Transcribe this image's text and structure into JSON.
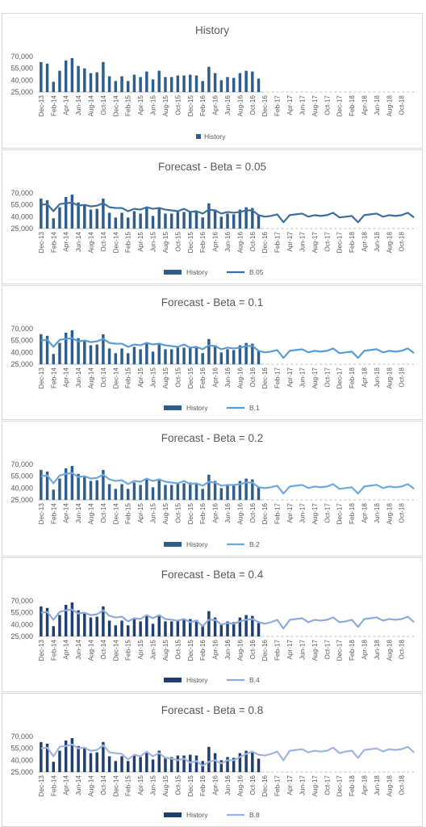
{
  "chart_data": [
    {
      "type": "bar",
      "title": "History",
      "legend_position": "bottom",
      "grid": false,
      "ylim": [
        25000,
        70000
      ],
      "yticks": [
        "25,000",
        "40,000",
        "55,000",
        "70,000"
      ],
      "xtick_labels": [
        "Dec-13",
        "Feb-14",
        "Apr-14",
        "Jun-14",
        "Aug-14",
        "Oct-14",
        "Dec-14",
        "Feb-15",
        "Apr-15",
        "Jun-15",
        "Aug-15",
        "Oct-15",
        "Dec-15",
        "Feb-16",
        "Apr-16",
        "Jun-16",
        "Aug-16",
        "Oct-16",
        "Dec-16",
        "Feb-17",
        "Apr-17",
        "Jun-17",
        "Aug-17",
        "Oct-17",
        "Dec-17",
        "Feb-18",
        "Apr-18",
        "Jun-18",
        "Aug-18",
        "Oct-18"
      ],
      "bar_color": "#2e5e8e",
      "series": [
        {
          "name": "History",
          "kind": "bar",
          "color": "#2e5e8e",
          "values": [
            63000,
            61000,
            38000,
            52000,
            65000,
            68000,
            58000,
            55000,
            49000,
            50000,
            63000,
            45000,
            39000,
            45000,
            39000,
            47000,
            44000,
            51000,
            41000,
            52000,
            44000,
            44000,
            46000,
            46000,
            47000,
            46000,
            39000,
            57000,
            49000,
            40000,
            44000,
            43000,
            49000,
            52000,
            51000,
            42000
          ]
        }
      ]
    },
    {
      "type": "bar",
      "title": "Forecast - Beta = 0.05",
      "legend_position": "bottom",
      "grid": false,
      "ylim": [
        25000,
        70000
      ],
      "yticks": [
        "25,000",
        "40,000",
        "55,000",
        "70,000"
      ],
      "xtick_labels": [
        "Dec-13",
        "Feb-14",
        "Apr-14",
        "Jun-14",
        "Aug-14",
        "Oct-14",
        "Dec-14",
        "Feb-15",
        "Apr-15",
        "Jun-15",
        "Aug-15",
        "Oct-15",
        "Dec-15",
        "Feb-16",
        "Apr-16",
        "Jun-16",
        "Aug-16",
        "Oct-16",
        "Dec-16",
        "Feb-17",
        "Apr-17",
        "Jun-17",
        "Aug-17",
        "Oct-17",
        "Dec-17",
        "Feb-18",
        "Apr-18",
        "Jun-18",
        "Aug-18",
        "Oct-18"
      ],
      "series": [
        {
          "name": "History",
          "kind": "bar",
          "color": "#2e5e8e",
          "values": [
            63000,
            61000,
            38000,
            52000,
            65000,
            68000,
            58000,
            55000,
            49000,
            50000,
            63000,
            45000,
            39000,
            45000,
            39000,
            47000,
            44000,
            51000,
            41000,
            52000,
            44000,
            44000,
            46000,
            46000,
            47000,
            46000,
            39000,
            57000,
            49000,
            40000,
            44000,
            43000,
            49000,
            52000,
            51000,
            42000
          ]
        },
        {
          "name": "B.05",
          "kind": "line",
          "color": "#3d6e9e",
          "values": [
            55000,
            56000,
            47000,
            56000,
            57000,
            58000,
            54000,
            55000,
            53000,
            54000,
            57000,
            52000,
            51000,
            51000,
            47000,
            50000,
            49000,
            52000,
            50000,
            51000,
            49000,
            48000,
            47000,
            50000,
            46000,
            47000,
            44000,
            49000,
            48000,
            44000,
            46000,
            45000,
            46000,
            48000,
            48000,
            42000,
            40000,
            41000,
            43000,
            33000,
            42000,
            43000,
            44000,
            40000,
            42000,
            41000,
            42000,
            45000,
            39000,
            40000,
            41000,
            33000,
            42000,
            43000,
            44000,
            40000,
            42000,
            41000,
            42000,
            45000,
            39000
          ]
        }
      ]
    },
    {
      "type": "bar",
      "title": "Forecast - Beta = 0.1",
      "legend_position": "bottom",
      "grid": false,
      "ylim": [
        25000,
        70000
      ],
      "yticks": [
        "25,000",
        "40,000",
        "55,000",
        "70,000"
      ],
      "xtick_labels": [
        "Dec-13",
        "Feb-14",
        "Apr-14",
        "Jun-14",
        "Aug-14",
        "Oct-14",
        "Dec-14",
        "Feb-15",
        "Apr-15",
        "Jun-15",
        "Aug-15",
        "Oct-15",
        "Dec-15",
        "Feb-16",
        "Apr-16",
        "Jun-16",
        "Aug-16",
        "Oct-16",
        "Dec-16",
        "Feb-17",
        "Apr-17",
        "Jun-17",
        "Aug-17",
        "Oct-17",
        "Dec-17",
        "Feb-18",
        "Apr-18",
        "Jun-18",
        "Aug-18",
        "Oct-18"
      ],
      "series": [
        {
          "name": "History",
          "kind": "bar",
          "color": "#2e5e8e",
          "values": [
            63000,
            61000,
            38000,
            52000,
            65000,
            68000,
            58000,
            55000,
            49000,
            50000,
            63000,
            45000,
            39000,
            45000,
            39000,
            47000,
            44000,
            51000,
            41000,
            52000,
            44000,
            44000,
            46000,
            46000,
            47000,
            46000,
            39000,
            57000,
            49000,
            40000,
            44000,
            43000,
            49000,
            52000,
            51000,
            42000
          ]
        },
        {
          "name": "B.1",
          "kind": "line",
          "color": "#5b9bd5",
          "values": [
            55000,
            56000,
            47000,
            56000,
            57000,
            58000,
            54000,
            55000,
            53000,
            54000,
            57000,
            52000,
            51000,
            51000,
            47000,
            50000,
            49000,
            52000,
            50000,
            51000,
            49000,
            48000,
            47000,
            50000,
            46000,
            47000,
            44000,
            49000,
            48000,
            44000,
            46000,
            45000,
            46000,
            48000,
            48000,
            42000,
            40000,
            41000,
            43000,
            33000,
            42000,
            43000,
            44000,
            40000,
            42000,
            41000,
            42000,
            45000,
            39000,
            40000,
            41000,
            33000,
            42000,
            43000,
            44000,
            40000,
            42000,
            41000,
            42000,
            45000,
            39000
          ]
        }
      ]
    },
    {
      "type": "bar",
      "title": "Forecast - Beta = 0.2",
      "legend_position": "bottom",
      "grid": false,
      "ylim": [
        25000,
        70000
      ],
      "yticks": [
        "25,000",
        "40,000",
        "55,000",
        "70,000"
      ],
      "xtick_labels": [
        "Dec-13",
        "Feb-14",
        "Apr-14",
        "Jun-14",
        "Aug-14",
        "Oct-14",
        "Dec-14",
        "Feb-15",
        "Apr-15",
        "Jun-15",
        "Aug-15",
        "Oct-15",
        "Dec-15",
        "Feb-16",
        "Apr-16",
        "Jun-16",
        "Aug-16",
        "Oct-16",
        "Dec-16",
        "Feb-17",
        "Apr-17",
        "Jun-17",
        "Aug-17",
        "Oct-17",
        "Dec-17",
        "Feb-18",
        "Apr-18",
        "Jun-18",
        "Aug-18",
        "Oct-18"
      ],
      "series": [
        {
          "name": "History",
          "kind": "bar",
          "color": "#2e5e8e",
          "values": [
            63000,
            61000,
            38000,
            52000,
            65000,
            68000,
            58000,
            55000,
            49000,
            50000,
            63000,
            45000,
            39000,
            45000,
            39000,
            47000,
            44000,
            51000,
            41000,
            52000,
            44000,
            44000,
            46000,
            46000,
            47000,
            46000,
            39000,
            57000,
            49000,
            40000,
            44000,
            43000,
            49000,
            52000,
            51000,
            42000
          ]
        },
        {
          "name": "B.2",
          "kind": "line",
          "color": "#6fa8dc",
          "values": [
            55000,
            56000,
            46000,
            56000,
            58000,
            59000,
            54000,
            55000,
            52000,
            53000,
            57000,
            51000,
            49000,
            50000,
            45000,
            49000,
            48000,
            52000,
            49000,
            51000,
            48000,
            47000,
            46000,
            49000,
            45000,
            46000,
            43000,
            48000,
            47000,
            43000,
            44000,
            44000,
            45000,
            47000,
            47000,
            41000,
            40000,
            41000,
            43000,
            33000,
            42000,
            43000,
            44000,
            40000,
            42000,
            41000,
            42000,
            45000,
            39000,
            40000,
            41000,
            33000,
            42000,
            43000,
            44000,
            40000,
            42000,
            41000,
            42000,
            45000,
            39000
          ]
        }
      ]
    },
    {
      "type": "bar",
      "title": "Forecast - Beta = 0.4",
      "legend_position": "bottom",
      "grid": false,
      "ylim": [
        25000,
        70000
      ],
      "yticks": [
        "25,000",
        "40,000",
        "55,000",
        "70,000"
      ],
      "xtick_labels": [
        "Dec-13",
        "Feb-14",
        "Apr-14",
        "Jun-14",
        "Aug-14",
        "Oct-14",
        "Dec-14",
        "Feb-15",
        "Apr-15",
        "Jun-15",
        "Aug-15",
        "Oct-15",
        "Dec-15",
        "Feb-16",
        "Apr-16",
        "Jun-16",
        "Aug-16",
        "Oct-16",
        "Dec-16",
        "Feb-17",
        "Apr-17",
        "Jun-17",
        "Aug-17",
        "Oct-17",
        "Dec-17",
        "Feb-18",
        "Apr-18",
        "Jun-18",
        "Aug-18",
        "Oct-18"
      ],
      "series": [
        {
          "name": "History",
          "kind": "bar",
          "color": "#1f3f73",
          "values": [
            63000,
            61000,
            38000,
            52000,
            65000,
            68000,
            58000,
            55000,
            49000,
            50000,
            63000,
            45000,
            39000,
            45000,
            39000,
            47000,
            44000,
            51000,
            41000,
            52000,
            44000,
            44000,
            46000,
            46000,
            47000,
            46000,
            39000,
            57000,
            49000,
            40000,
            44000,
            43000,
            49000,
            52000,
            51000,
            42000
          ]
        },
        {
          "name": "B.4",
          "kind": "line",
          "color": "#8ea9db",
          "values": [
            55000,
            56000,
            46000,
            56000,
            58000,
            59000,
            54000,
            55000,
            52000,
            53000,
            58000,
            51000,
            49000,
            50000,
            44000,
            48000,
            47000,
            52000,
            48000,
            52000,
            47000,
            46000,
            45000,
            47000,
            43000,
            45000,
            38000,
            46000,
            46000,
            40000,
            42000,
            41000,
            44000,
            46000,
            47000,
            43000,
            41000,
            43000,
            46000,
            35000,
            46000,
            47000,
            48000,
            43000,
            46000,
            45000,
            46000,
            49000,
            43000,
            44000,
            46000,
            37000,
            47000,
            48000,
            49000,
            45000,
            47000,
            46000,
            47000,
            50000,
            43000
          ]
        }
      ]
    },
    {
      "type": "bar",
      "title": "Forecast - Beta = 0.8",
      "legend_position": "bottom",
      "grid": false,
      "ylim": [
        25000,
        70000
      ],
      "yticks": [
        "25,000",
        "40,000",
        "55,000",
        "70,000"
      ],
      "xtick_labels": [
        "Dec-13",
        "Feb-14",
        "Apr-14",
        "Jun-14",
        "Aug-14",
        "Oct-14",
        "Dec-14",
        "Feb-15",
        "Apr-15",
        "Jun-15",
        "Aug-15",
        "Oct-15",
        "Dec-15",
        "Feb-16",
        "Apr-16",
        "Jun-16",
        "Aug-16",
        "Oct-16",
        "Dec-16",
        "Feb-17",
        "Apr-17",
        "Jun-17",
        "Aug-17",
        "Oct-17",
        "Dec-17",
        "Feb-18",
        "Apr-18",
        "Jun-18",
        "Aug-18",
        "Oct-18"
      ],
      "series": [
        {
          "name": "History",
          "kind": "bar",
          "color": "#1f3f73",
          "values": [
            63000,
            61000,
            38000,
            52000,
            65000,
            68000,
            58000,
            55000,
            49000,
            50000,
            63000,
            45000,
            39000,
            45000,
            39000,
            47000,
            44000,
            51000,
            41000,
            52000,
            44000,
            44000,
            46000,
            46000,
            47000,
            46000,
            39000,
            57000,
            49000,
            40000,
            44000,
            43000,
            49000,
            52000,
            51000,
            42000
          ]
        },
        {
          "name": "B.8",
          "kind": "line",
          "color": "#9fb4de",
          "values": [
            55000,
            56000,
            45000,
            57000,
            58000,
            60000,
            55000,
            56000,
            52000,
            53000,
            59000,
            50000,
            49000,
            48000,
            41000,
            47000,
            45000,
            51000,
            45000,
            49000,
            43000,
            42000,
            40000,
            42000,
            37000,
            39000,
            33000,
            38000,
            40000,
            36000,
            40000,
            40000,
            44000,
            48000,
            51000,
            47000,
            46000,
            48000,
            51000,
            40000,
            52000,
            53000,
            54000,
            50000,
            52000,
            51000,
            52000,
            56000,
            49000,
            51000,
            52000,
            43000,
            53000,
            54000,
            55000,
            51000,
            54000,
            53000,
            54000,
            57000,
            50000
          ]
        }
      ]
    }
  ]
}
